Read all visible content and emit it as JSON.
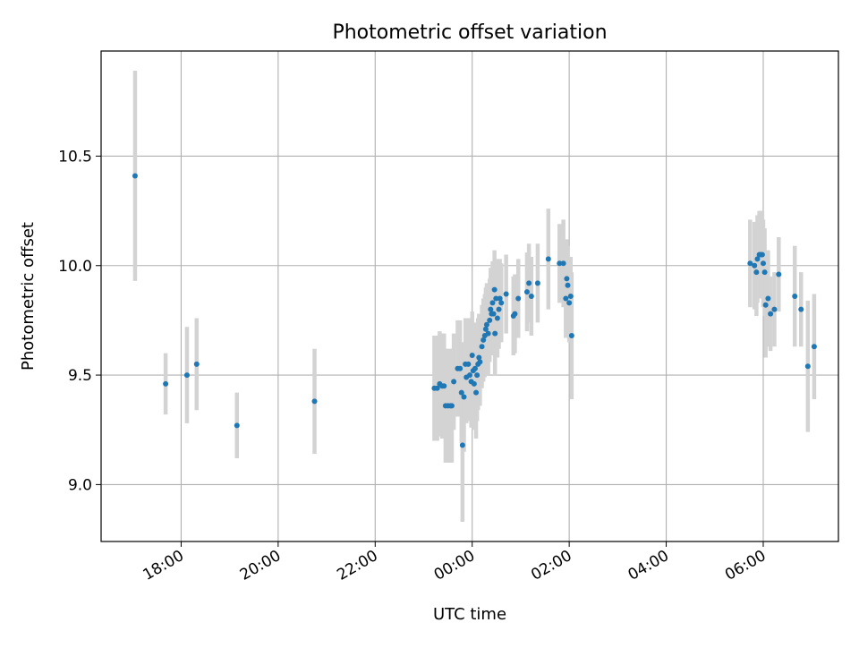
{
  "chart_data": {
    "type": "scatter",
    "title": "Photometric offset variation",
    "xlabel": "UTC time",
    "ylabel": "Photometric offset",
    "x_unit": "hours (UTC)",
    "xlim": [
      16.35,
      31.55
    ],
    "ylim": [
      8.74,
      10.98
    ],
    "grid": true,
    "x_ticks": [
      {
        "value": 18,
        "label": "18:00"
      },
      {
        "value": 20,
        "label": "20:00"
      },
      {
        "value": 22,
        "label": "22:00"
      },
      {
        "value": 24,
        "label": "00:00"
      },
      {
        "value": 26,
        "label": "02:00"
      },
      {
        "value": 28,
        "label": "04:00"
      },
      {
        "value": 30,
        "label": "06:00"
      }
    ],
    "y_ticks": [
      {
        "value": 9.0,
        "label": "9.0"
      },
      {
        "value": 9.5,
        "label": "9.5"
      },
      {
        "value": 10.0,
        "label": "10.0"
      },
      {
        "value": 10.5,
        "label": "10.5"
      }
    ],
    "colors": {
      "point": "#1f77b4",
      "errorbar": "#d3d3d3",
      "grid": "#b0b0b0"
    },
    "series": [
      {
        "points": [
          [
            17.05,
            10.41,
            0.48
          ],
          [
            17.68,
            9.46,
            0.14
          ],
          [
            18.12,
            9.5,
            0.22
          ],
          [
            18.32,
            9.55,
            0.21
          ],
          [
            19.15,
            9.27,
            0.15
          ],
          [
            20.75,
            9.38,
            0.24
          ],
          [
            23.22,
            9.44,
            0.24
          ],
          [
            23.28,
            9.44,
            0.24
          ],
          [
            23.33,
            9.46,
            0.24
          ],
          [
            23.38,
            9.45,
            0.24
          ],
          [
            23.42,
            9.45,
            0.24
          ],
          [
            23.45,
            9.36,
            0.26
          ],
          [
            23.5,
            9.36,
            0.26
          ],
          [
            23.55,
            9.36,
            0.26
          ],
          [
            23.58,
            9.36,
            0.26
          ],
          [
            23.62,
            9.47,
            0.22
          ],
          [
            23.7,
            9.53,
            0.22
          ],
          [
            23.75,
            9.53,
            0.22
          ],
          [
            23.78,
            9.42,
            0.23
          ],
          [
            23.8,
            9.18,
            0.35
          ],
          [
            23.83,
            9.4,
            0.25
          ],
          [
            23.86,
            9.55,
            0.21
          ],
          [
            23.88,
            9.49,
            0.21
          ],
          [
            23.92,
            9.55,
            0.21
          ],
          [
            23.95,
            9.5,
            0.21
          ],
          [
            23.98,
            9.47,
            0.21
          ],
          [
            24.0,
            9.59,
            0.2
          ],
          [
            24.02,
            9.52,
            0.21
          ],
          [
            24.04,
            9.46,
            0.21
          ],
          [
            24.06,
            9.53,
            0.21
          ],
          [
            24.08,
            9.42,
            0.21
          ],
          [
            24.1,
            9.5,
            0.21
          ],
          [
            24.12,
            9.55,
            0.21
          ],
          [
            24.14,
            9.58,
            0.2
          ],
          [
            24.16,
            9.56,
            0.2
          ],
          [
            24.2,
            9.63,
            0.19
          ],
          [
            24.23,
            9.66,
            0.19
          ],
          [
            24.26,
            9.68,
            0.19
          ],
          [
            24.28,
            9.71,
            0.19
          ],
          [
            24.3,
            9.73,
            0.19
          ],
          [
            24.33,
            9.69,
            0.19
          ],
          [
            24.36,
            9.75,
            0.19
          ],
          [
            24.38,
            9.8,
            0.19
          ],
          [
            24.4,
            9.78,
            0.19
          ],
          [
            24.42,
            9.83,
            0.19
          ],
          [
            24.44,
            9.78,
            0.19
          ],
          [
            24.46,
            9.89,
            0.18
          ],
          [
            24.47,
            9.69,
            0.19
          ],
          [
            24.49,
            9.85,
            0.18
          ],
          [
            24.52,
            9.76,
            0.18
          ],
          [
            24.55,
            9.8,
            0.18
          ],
          [
            24.57,
            9.85,
            0.18
          ],
          [
            24.6,
            9.83,
            0.18
          ],
          [
            24.7,
            9.87,
            0.18
          ],
          [
            24.85,
            9.77,
            0.18
          ],
          [
            24.88,
            9.78,
            0.18
          ],
          [
            24.95,
            9.85,
            0.18
          ],
          [
            25.13,
            9.88,
            0.18
          ],
          [
            25.17,
            9.92,
            0.18
          ],
          [
            25.22,
            9.86,
            0.18
          ],
          [
            25.35,
            9.92,
            0.18
          ],
          [
            25.57,
            10.03,
            0.23
          ],
          [
            25.8,
            10.01,
            0.18
          ],
          [
            25.88,
            10.01,
            0.2
          ],
          [
            25.93,
            9.85,
            0.18
          ],
          [
            25.95,
            9.94,
            0.18
          ],
          [
            25.97,
            9.91,
            0.18
          ],
          [
            26.0,
            9.83,
            0.18
          ],
          [
            26.03,
            9.86,
            0.18
          ],
          [
            26.05,
            9.68,
            0.29
          ],
          [
            29.73,
            10.01,
            0.2
          ],
          [
            29.82,
            10.0,
            0.2
          ],
          [
            29.86,
            9.97,
            0.2
          ],
          [
            29.88,
            10.03,
            0.2
          ],
          [
            29.92,
            10.05,
            0.2
          ],
          [
            29.95,
            10.05,
            0.2
          ],
          [
            29.98,
            10.05,
            0.2
          ],
          [
            30.0,
            10.01,
            0.2
          ],
          [
            30.03,
            9.97,
            0.2
          ],
          [
            30.05,
            9.82,
            0.24
          ],
          [
            30.1,
            9.85,
            0.22
          ],
          [
            30.15,
            9.78,
            0.17
          ],
          [
            30.23,
            9.8,
            0.17
          ],
          [
            30.32,
            9.96,
            0.17
          ],
          [
            30.65,
            9.86,
            0.23
          ],
          [
            30.78,
            9.8,
            0.17
          ],
          [
            30.92,
            9.54,
            0.3
          ],
          [
            31.05,
            9.63,
            0.24
          ]
        ]
      }
    ]
  }
}
